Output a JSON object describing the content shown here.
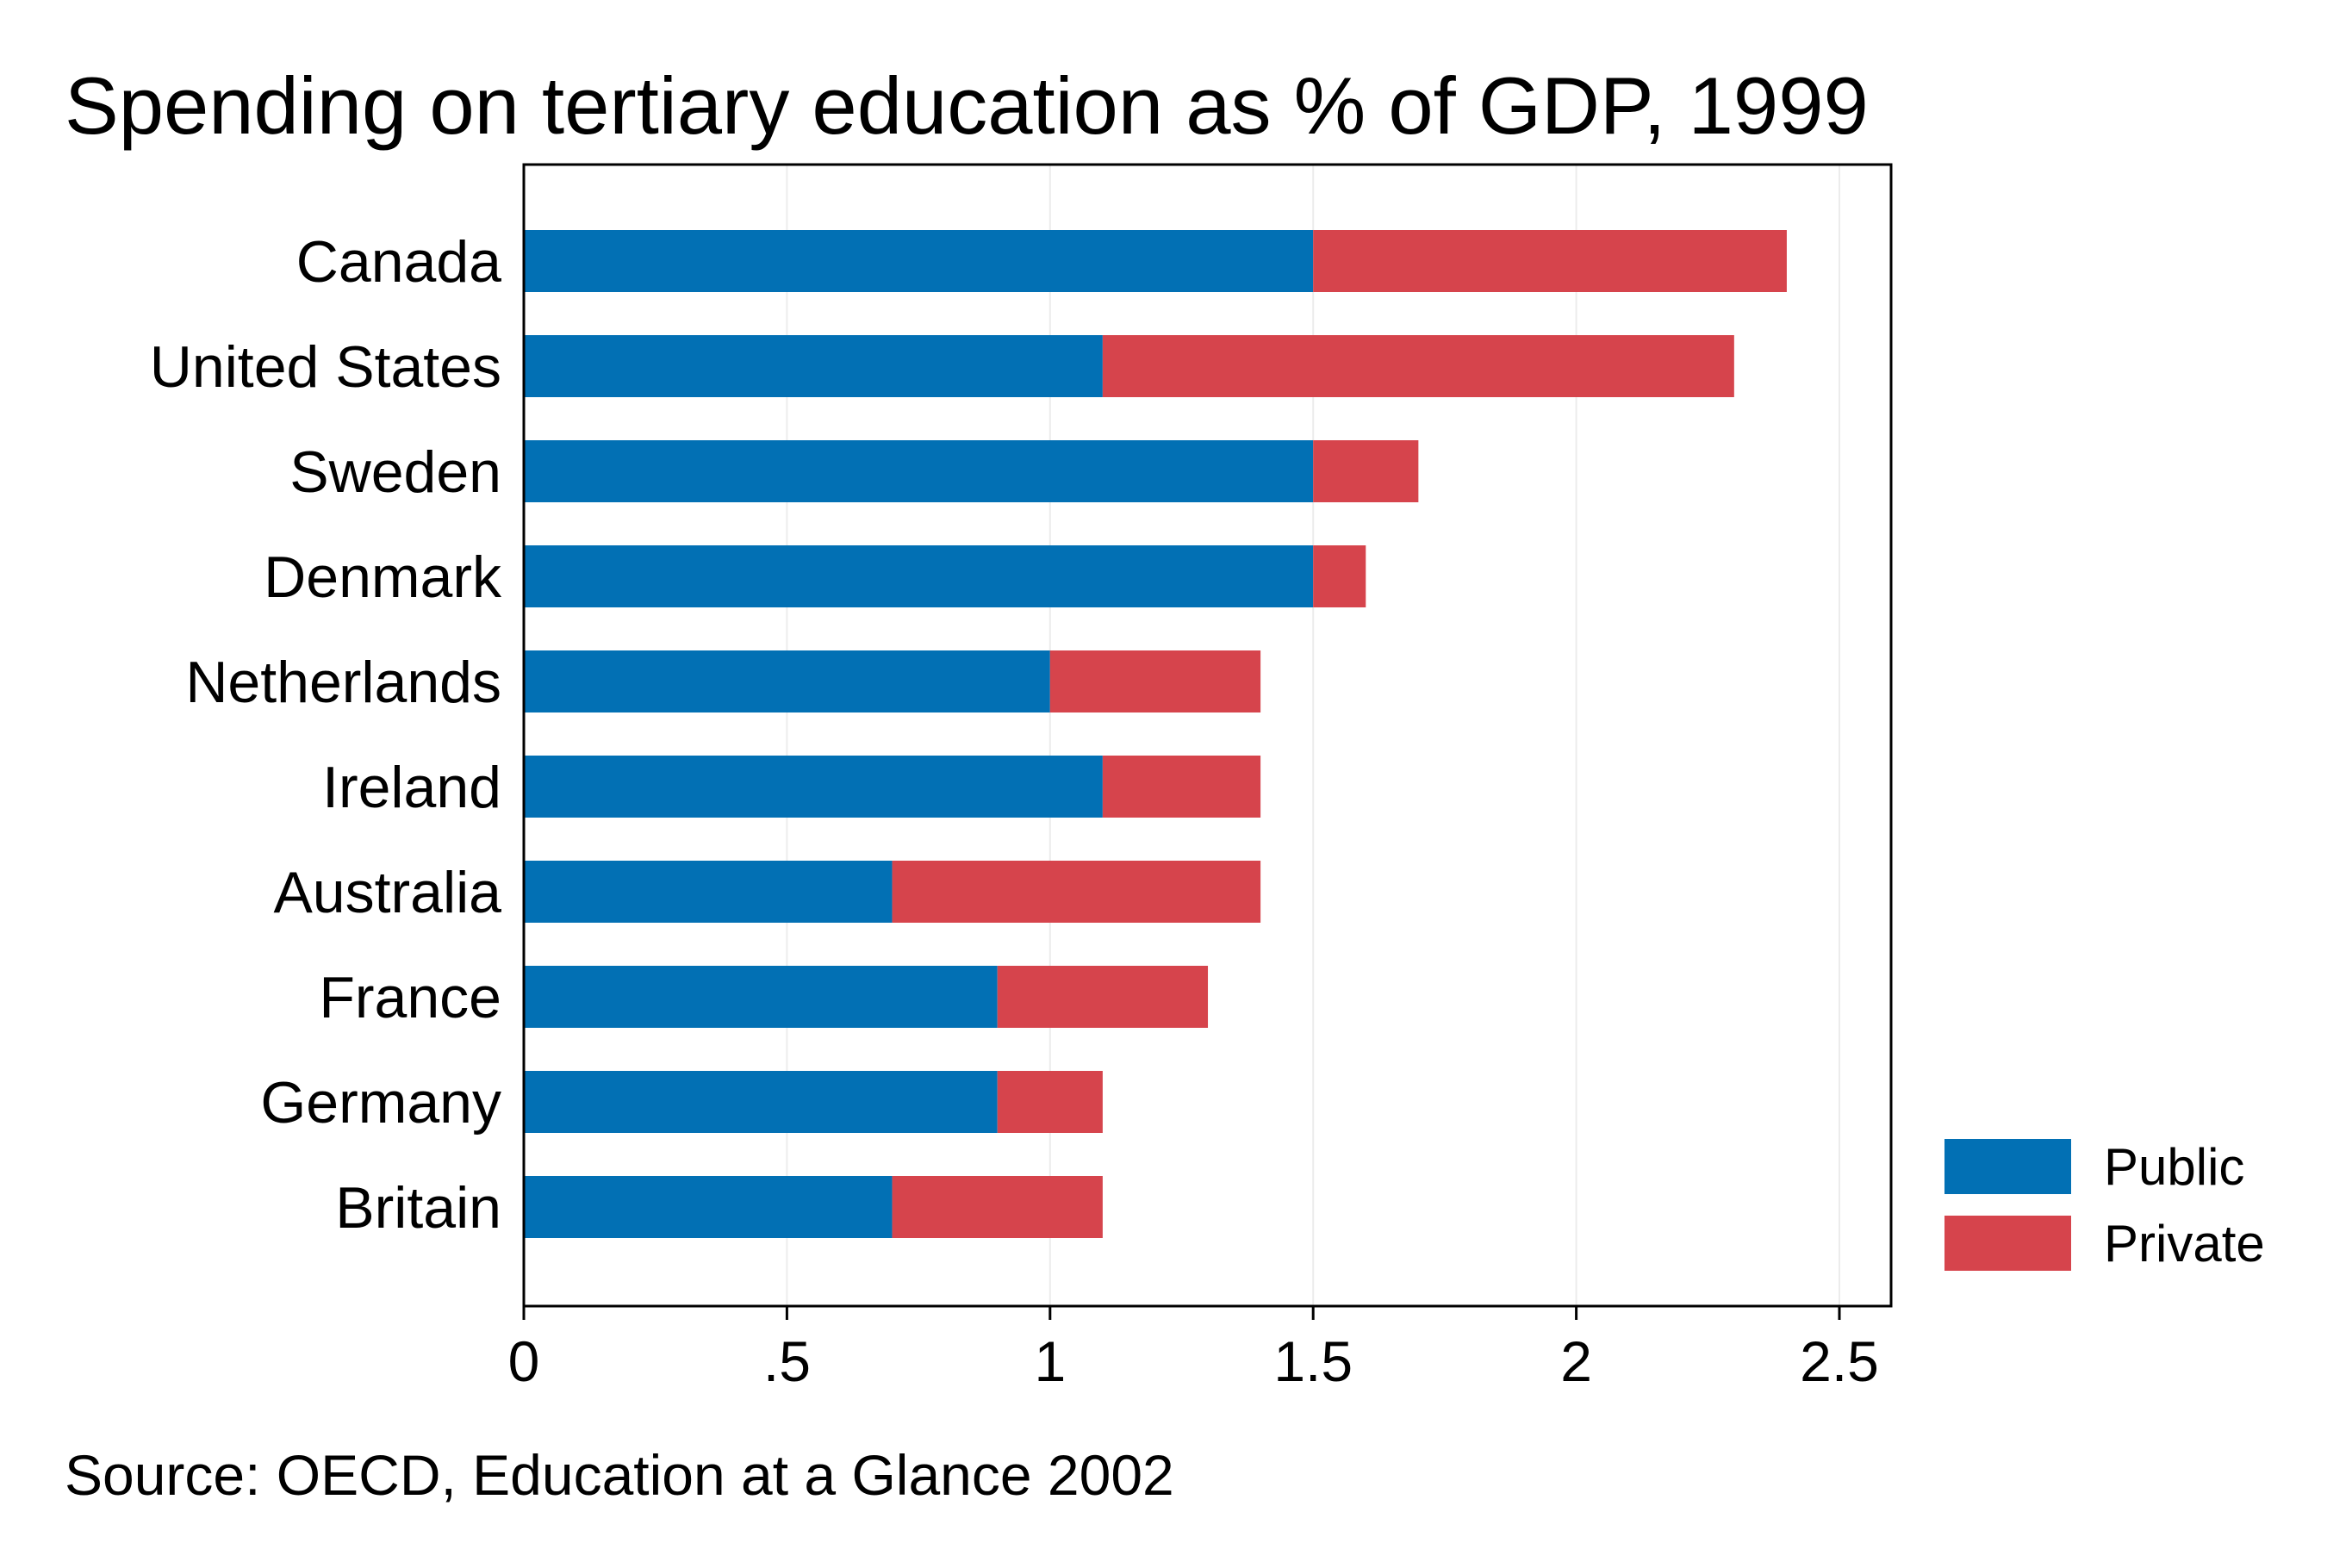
{
  "chart_data": {
    "type": "bar",
    "orientation": "horizontal",
    "stacked": true,
    "title": "Spending on tertiary education as % of GDP, 1999",
    "source": "Source: OECD, Education at a Glance 2002",
    "xlabel": "",
    "ylabel": "",
    "xlim": [
      0,
      2.6
    ],
    "xticks": [
      0,
      0.5,
      1,
      1.5,
      2,
      2.5
    ],
    "xtick_labels": [
      "0",
      ".5",
      "1",
      "1.5",
      "2",
      "2.5"
    ],
    "grid": true,
    "legend_position": "right-bottom",
    "categories": [
      "Canada",
      "United States",
      "Sweden",
      "Denmark",
      "Netherlands",
      "Ireland",
      "Australia",
      "France",
      "Germany",
      "Britain"
    ],
    "series": [
      {
        "name": "Public",
        "color": "#0270b4",
        "values": [
          1.5,
          1.1,
          1.5,
          1.5,
          1.0,
          1.1,
          0.7,
          0.9,
          0.9,
          0.7
        ]
      },
      {
        "name": "Private",
        "color": "#d6444c",
        "values": [
          0.9,
          1.2,
          0.2,
          0.1,
          0.4,
          0.3,
          0.7,
          0.4,
          0.2,
          0.4
        ]
      }
    ]
  }
}
